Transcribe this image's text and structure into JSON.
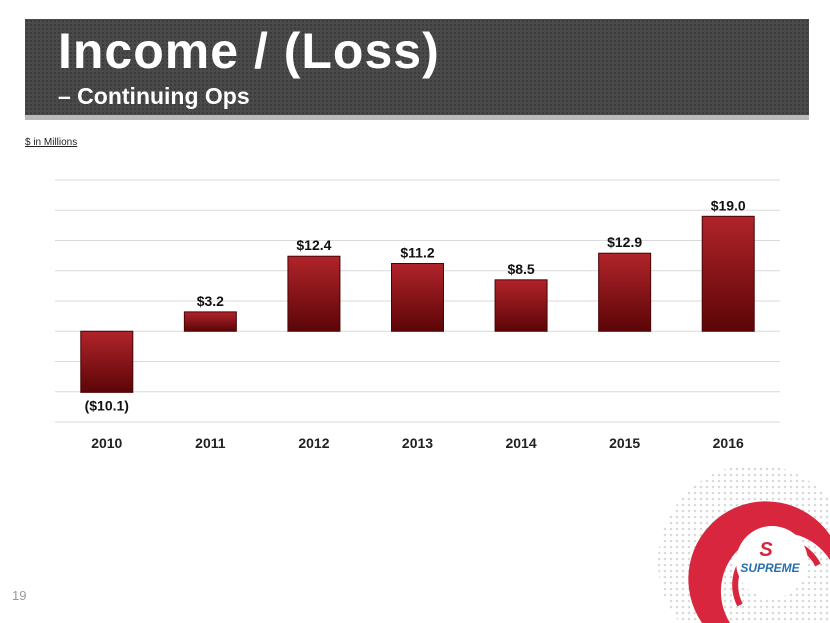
{
  "slide": {
    "title": "Income / (Loss)",
    "subtitle": "– Continuing Ops",
    "units_note": "$ in Millions",
    "page_number": "19",
    "logo_text": "SUPREME"
  },
  "colors": {
    "bar_top": "#b0242a",
    "bar_bottom": "#5c0507",
    "header_bg": "#4a4a4a",
    "logo_red": "#d7263d"
  },
  "chart_data": {
    "type": "bar",
    "title": "Income / (Loss) – Continuing Ops",
    "ylabel": "$ in Millions",
    "categories": [
      "2010",
      "2011",
      "2012",
      "2013",
      "2014",
      "2015",
      "2016"
    ],
    "values": [
      -10.1,
      3.2,
      12.4,
      11.2,
      8.5,
      12.9,
      19.0
    ],
    "data_labels": [
      "($10.1)",
      "$3.2",
      "$12.4",
      "$11.2",
      "$8.5",
      "$12.9",
      "$19.0"
    ],
    "ylim": [
      -15,
      25
    ],
    "grid": true,
    "legend": "none"
  }
}
